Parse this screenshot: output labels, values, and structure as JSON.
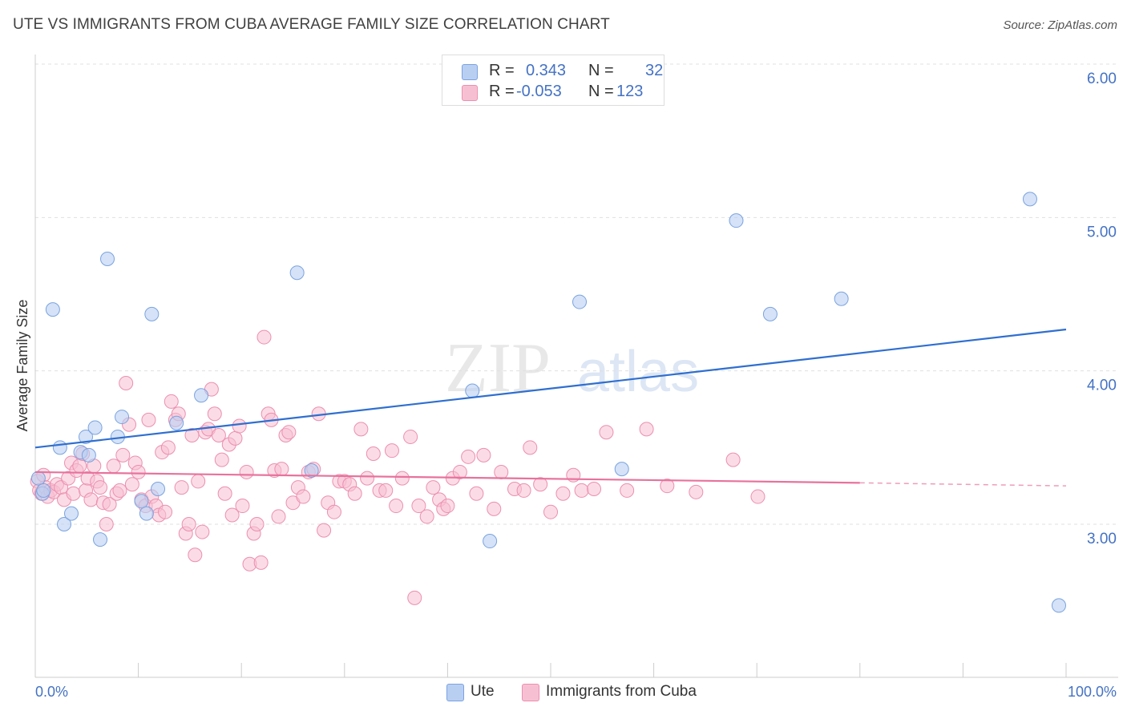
{
  "title": "UTE VS IMMIGRANTS FROM CUBA AVERAGE FAMILY SIZE CORRELATION CHART",
  "source": "Source: ZipAtlas.com",
  "watermark": {
    "zip": "ZIP",
    "atlas": "atlas"
  },
  "legend": [
    {
      "r_label": "R =",
      "r_value": "0.343",
      "n_label": "N =",
      "n_value": "32"
    },
    {
      "r_label": "R =",
      "r_value": "-0.053",
      "n_label": "N =",
      "n_value": "123"
    }
  ],
  "colors": {
    "ute_fill": "#b9cff2",
    "ute_stroke": "#7aa3e0",
    "ute_line": "#2f6fd0",
    "cuba_fill": "#f7c0d2",
    "cuba_stroke": "#ec8fb0",
    "cuba_line": "#e8729c",
    "axis_label": "#4472c4",
    "grid": "#e0e0e0"
  },
  "chart_data": {
    "type": "scatter",
    "title": "UTE VS IMMIGRANTS FROM CUBA AVERAGE FAMILY SIZE CORRELATION CHART",
    "xlabel": "",
    "ylabel": "Average Family Size",
    "xlim": [
      0,
      100
    ],
    "ylim": [
      2.0,
      6.1
    ],
    "y_ticks": [
      3.0,
      4.0,
      5.0,
      6.0
    ],
    "y_tick_labels": [
      "3.00",
      "4.00",
      "5.00",
      "6.00"
    ],
    "x_tick_labels": {
      "min": "0.0%",
      "max": "100.0%"
    },
    "legend_position": "bottom",
    "series": [
      {
        "name": "Ute",
        "r": 0.343,
        "n": 32,
        "trend": {
          "x": [
            0,
            100
          ],
          "y": [
            3.5,
            4.27
          ]
        },
        "points": [
          [
            0.3,
            3.3
          ],
          [
            0.7,
            3.2
          ],
          [
            1.7,
            4.4
          ],
          [
            2.4,
            3.5
          ],
          [
            2.8,
            3.0
          ],
          [
            3.5,
            3.07
          ],
          [
            4.4,
            3.47
          ],
          [
            4.9,
            3.57
          ],
          [
            5.2,
            3.45
          ],
          [
            5.8,
            3.63
          ],
          [
            6.3,
            2.9
          ],
          [
            7.0,
            4.73
          ],
          [
            8.0,
            3.57
          ],
          [
            8.4,
            3.7
          ],
          [
            10.3,
            3.15
          ],
          [
            10.8,
            3.07
          ],
          [
            11.3,
            4.37
          ],
          [
            11.9,
            3.23
          ],
          [
            13.7,
            3.66
          ],
          [
            16.1,
            3.84
          ],
          [
            25.4,
            4.64
          ],
          [
            26.8,
            3.35
          ],
          [
            42.4,
            3.87
          ],
          [
            44.1,
            2.89
          ],
          [
            52.8,
            4.45
          ],
          [
            56.9,
            3.36
          ],
          [
            68.0,
            4.98
          ],
          [
            71.3,
            4.37
          ],
          [
            78.2,
            4.47
          ],
          [
            96.5,
            5.12
          ],
          [
            99.3,
            2.47
          ],
          [
            0.8,
            3.22
          ]
        ]
      },
      {
        "name": "Immigrants from Cuba",
        "r": -0.053,
        "n": 123,
        "trend": {
          "x": [
            0,
            80
          ],
          "y": [
            3.34,
            3.27
          ]
        },
        "trend_dashed": {
          "x": [
            80,
            100
          ],
          "y": [
            3.27,
            3.25
          ]
        },
        "points": [
          [
            0.2,
            3.28
          ],
          [
            0.4,
            3.22
          ],
          [
            0.6,
            3.2
          ],
          [
            0.8,
            3.32
          ],
          [
            1.0,
            3.24
          ],
          [
            1.2,
            3.18
          ],
          [
            1.5,
            3.22
          ],
          [
            1.8,
            3.21
          ],
          [
            2.1,
            3.26
          ],
          [
            2.5,
            3.24
          ],
          [
            2.8,
            3.16
          ],
          [
            3.2,
            3.3
          ],
          [
            3.5,
            3.4
          ],
          [
            3.7,
            3.2
          ],
          [
            4.0,
            3.35
          ],
          [
            4.3,
            3.38
          ],
          [
            4.6,
            3.46
          ],
          [
            4.9,
            3.22
          ],
          [
            5.1,
            3.3
          ],
          [
            5.4,
            3.16
          ],
          [
            5.7,
            3.38
          ],
          [
            6.0,
            3.28
          ],
          [
            6.3,
            3.24
          ],
          [
            6.6,
            3.14
          ],
          [
            6.9,
            3.0
          ],
          [
            7.2,
            3.13
          ],
          [
            7.6,
            3.38
          ],
          [
            7.9,
            3.2
          ],
          [
            8.2,
            3.22
          ],
          [
            8.5,
            3.45
          ],
          [
            8.8,
            3.92
          ],
          [
            9.1,
            3.65
          ],
          [
            9.4,
            3.26
          ],
          [
            9.7,
            3.4
          ],
          [
            10.0,
            3.34
          ],
          [
            10.3,
            3.16
          ],
          [
            10.7,
            3.12
          ],
          [
            11.0,
            3.68
          ],
          [
            11.3,
            3.18
          ],
          [
            11.7,
            3.12
          ],
          [
            12.0,
            3.06
          ],
          [
            12.3,
            3.47
          ],
          [
            12.6,
            3.08
          ],
          [
            12.9,
            3.5
          ],
          [
            13.2,
            3.8
          ],
          [
            13.6,
            3.68
          ],
          [
            13.9,
            3.72
          ],
          [
            14.2,
            3.24
          ],
          [
            14.6,
            2.94
          ],
          [
            14.9,
            3.0
          ],
          [
            15.2,
            3.58
          ],
          [
            15.5,
            2.8
          ],
          [
            15.8,
            3.28
          ],
          [
            16.2,
            2.95
          ],
          [
            16.5,
            3.6
          ],
          [
            16.8,
            3.62
          ],
          [
            17.1,
            3.88
          ],
          [
            17.4,
            3.72
          ],
          [
            17.8,
            3.58
          ],
          [
            18.1,
            3.42
          ],
          [
            18.4,
            3.2
          ],
          [
            18.8,
            3.52
          ],
          [
            19.1,
            3.06
          ],
          [
            19.4,
            3.56
          ],
          [
            19.8,
            3.64
          ],
          [
            20.1,
            3.12
          ],
          [
            20.5,
            3.34
          ],
          [
            20.8,
            2.74
          ],
          [
            21.2,
            2.94
          ],
          [
            21.5,
            3.0
          ],
          [
            21.9,
            2.75
          ],
          [
            22.2,
            4.22
          ],
          [
            22.6,
            3.72
          ],
          [
            22.9,
            3.68
          ],
          [
            23.2,
            3.35
          ],
          [
            23.6,
            3.05
          ],
          [
            23.9,
            3.36
          ],
          [
            24.3,
            3.58
          ],
          [
            24.6,
            3.6
          ],
          [
            25.0,
            3.14
          ],
          [
            25.5,
            3.24
          ],
          [
            26.0,
            3.18
          ],
          [
            26.5,
            3.34
          ],
          [
            27.0,
            3.36
          ],
          [
            27.5,
            3.72
          ],
          [
            28.0,
            2.96
          ],
          [
            28.4,
            3.14
          ],
          [
            29.0,
            3.08
          ],
          [
            29.5,
            3.28
          ],
          [
            30.0,
            3.28
          ],
          [
            30.5,
            3.26
          ],
          [
            31.0,
            3.2
          ],
          [
            31.6,
            3.62
          ],
          [
            32.2,
            3.3
          ],
          [
            32.8,
            3.46
          ],
          [
            33.4,
            3.22
          ],
          [
            34.0,
            3.22
          ],
          [
            34.6,
            3.48
          ],
          [
            35.0,
            3.12
          ],
          [
            35.6,
            3.3
          ],
          [
            36.4,
            3.57
          ],
          [
            36.8,
            2.52
          ],
          [
            37.2,
            3.12
          ],
          [
            38.0,
            3.05
          ],
          [
            38.6,
            3.24
          ],
          [
            39.2,
            3.16
          ],
          [
            39.6,
            3.1
          ],
          [
            40.0,
            3.12
          ],
          [
            40.5,
            3.3
          ],
          [
            41.2,
            3.34
          ],
          [
            42.0,
            3.44
          ],
          [
            42.8,
            3.2
          ],
          [
            43.5,
            3.45
          ],
          [
            44.5,
            3.1
          ],
          [
            45.2,
            3.34
          ],
          [
            46.5,
            3.23
          ],
          [
            47.4,
            3.22
          ],
          [
            48.0,
            3.5
          ],
          [
            49.0,
            3.26
          ],
          [
            50.0,
            3.08
          ],
          [
            51.2,
            3.2
          ],
          [
            52.2,
            3.32
          ],
          [
            53.0,
            3.22
          ],
          [
            54.2,
            3.23
          ],
          [
            55.4,
            3.6
          ],
          [
            57.4,
            3.22
          ],
          [
            59.3,
            3.62
          ],
          [
            61.3,
            3.25
          ],
          [
            64.1,
            3.21
          ],
          [
            67.7,
            3.42
          ],
          [
            70.1,
            3.18
          ]
        ]
      }
    ]
  },
  "bottom_legend": [
    {
      "label": "Ute"
    },
    {
      "label": "Immigrants from Cuba"
    }
  ]
}
